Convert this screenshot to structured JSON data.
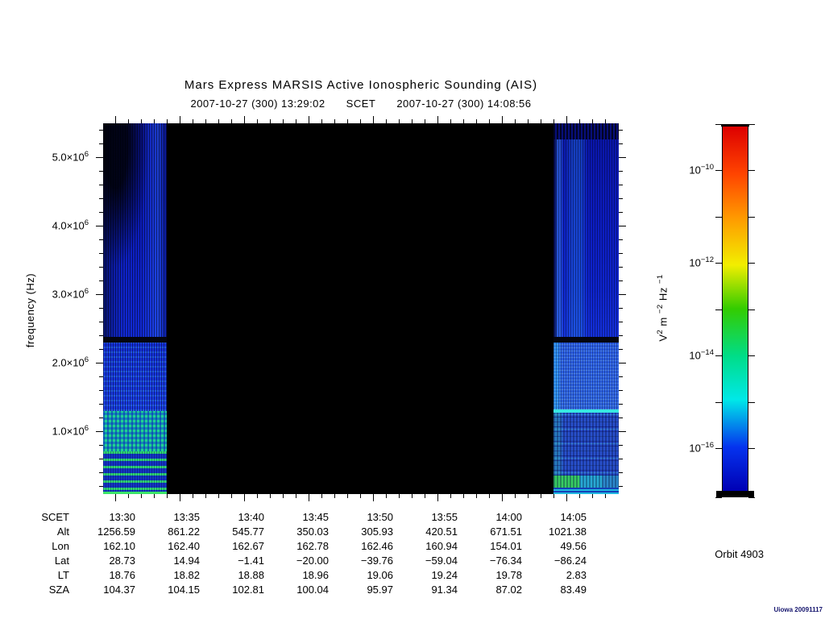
{
  "title": "Mars Express MARSIS Active Ionospheric Sounding (AIS)",
  "subtitle": {
    "start_scet": "2007-10-27 (300) 13:29:02",
    "axis_name": "SCET",
    "end_scet": "2007-10-27 (300) 14:08:56"
  },
  "orbit_label": "Orbit 4903",
  "credit": "Uiowa 20091117",
  "y_axis": {
    "label": "frequency (Hz)",
    "major_ticks": [
      {
        "freq_mhz": 5,
        "base": "5.0×10",
        "exp": "6"
      },
      {
        "freq_mhz": 4,
        "base": "4.0×10",
        "exp": "6"
      },
      {
        "freq_mhz": 3,
        "base": "3.0×10",
        "exp": "6"
      },
      {
        "freq_mhz": 2,
        "base": "2.0×10",
        "exp": "6"
      },
      {
        "freq_mhz": 1,
        "base": "1.0×10",
        "exp": "6"
      }
    ],
    "minor_step_mhz": 0.2
  },
  "x_axis": {
    "major_step_min": 5,
    "minor_step_min": 1
  },
  "colorbar": {
    "unit_parts": [
      {
        "t": "V",
        "sup": "2"
      },
      {
        "t": " m ",
        "sup": "−2"
      },
      {
        "t": " Hz ",
        "sup": "−1"
      }
    ],
    "ticks": [
      {
        "base": "10",
        "exp": "−10",
        "labeled": true
      },
      {
        "labeled": false
      },
      {
        "base": "10",
        "exp": "−12",
        "labeled": true
      },
      {
        "labeled": false
      },
      {
        "base": "10",
        "exp": "−14",
        "labeled": true
      },
      {
        "labeled": false
      },
      {
        "base": "10",
        "exp": "−16",
        "labeled": true
      }
    ],
    "gradient": [
      "#dd0000",
      "#ff4400",
      "#ff9900",
      "#f2ee00",
      "#33cc00",
      "#00dd88",
      "#00e8e8",
      "#0533ee",
      "#0000b4"
    ]
  },
  "ephemeris": {
    "rows": [
      {
        "label": "SCET",
        "values": [
          "13:30",
          "13:35",
          "13:40",
          "13:45",
          "13:50",
          "13:55",
          "14:00",
          "14:05"
        ]
      },
      {
        "label": "Alt",
        "values": [
          "1256.59",
          "861.22",
          "545.77",
          "350.03",
          "305.93",
          "420.51",
          "671.51",
          "1021.38"
        ]
      },
      {
        "label": "Lon",
        "values": [
          "162.10",
          "162.40",
          "162.67",
          "162.78",
          "162.46",
          "160.94",
          "154.01",
          "49.56"
        ]
      },
      {
        "label": "Lat",
        "values": [
          "28.73",
          "14.94",
          "−1.41",
          "−20.00",
          "−39.76",
          "−59.04",
          "−76.34",
          "−86.24"
        ]
      },
      {
        "label": "LT",
        "values": [
          "18.76",
          "18.82",
          "18.88",
          "18.96",
          "19.06",
          "19.24",
          "19.78",
          "2.83"
        ]
      },
      {
        "label": "SZA",
        "values": [
          "104.37",
          "104.15",
          "102.81",
          "100.04",
          "95.97",
          "91.34",
          "87.02",
          "83.49"
        ]
      }
    ]
  },
  "chart_data": {
    "type": "heatmap",
    "title": "Mars Express MARSIS Active Ionospheric Sounding (AIS)",
    "orbit": 4903,
    "x": {
      "label": "SCET",
      "start": "2007-10-27 (300) 13:29:02",
      "end": "2007-10-27 (300) 14:08:56",
      "major_tick_labels": [
        "13:30",
        "13:35",
        "13:40",
        "13:45",
        "13:50",
        "13:55",
        "14:00",
        "14:05"
      ],
      "minor_tick_interval_min": 1
    },
    "y": {
      "label": "frequency (Hz)",
      "range_hz": [
        100000,
        5500000
      ],
      "major_ticks_hz": [
        1000000,
        2000000,
        3000000,
        4000000,
        5000000
      ],
      "minor_tick_step_hz": 200000
    },
    "z": {
      "label": "V^2 m^-2 Hz^-1",
      "scale": "log",
      "labeled_ticks": [
        1e-10,
        1e-12,
        1e-14,
        1e-16
      ],
      "colormap": "rainbow, red = high spectral density at top, dark blue = low at bottom"
    },
    "coverage": [
      {
        "start": "13:29:02",
        "end": "~13:34",
        "content": "AIS spectra: dark blue vertical-striped noise 2.4–5.5 MHz with black patches near top, blue-cyan 1.3–2.3 MHz, cyan-green blocky emission below 1.3 MHz, wavy green harmonic bands below 0.6 MHz, black absorption band at ~2.35 MHz"
      },
      {
        "start": "~13:34",
        "end": "~14:04",
        "content": "no data (black fill)"
      },
      {
        "start": "~14:04",
        "end": "14:08:56",
        "content": "AIS spectra: blue striped noise 2.4–5.5 MHz, light blue below 2.3 MHz with horizontal banding, bright cyan line at ~1.25 MHz, dotted dark rows below 1 MHz, green patch below 0.3 MHz"
      }
    ]
  }
}
